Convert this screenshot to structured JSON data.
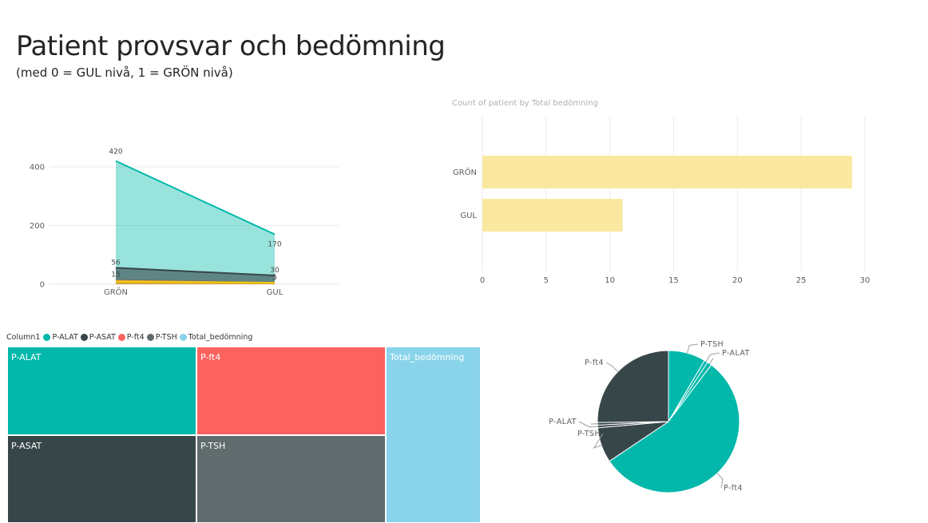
{
  "page": {
    "title": "Patient provsvar och bedömning",
    "subtitle": "(med 0 = GUL nivå, 1 = GRÖN nivå)"
  },
  "colors": {
    "P-ALAT": "#01b8aa",
    "P-ASAT": "#374649",
    "P-ft4": "#fd625e",
    "P-TSH": "#5f6b6d",
    "Total_bedömning": "#8ad4eb",
    "bar": "#fbe8a0",
    "grid": "#eaeaea"
  },
  "chart_data": [
    {
      "type": "area",
      "categories": [
        "GRÖN",
        "GUL"
      ],
      "yticks": [
        "0",
        "200",
        "400"
      ],
      "ylim": [
        0,
        460
      ],
      "series": [
        {
          "key": "P-ALAT",
          "values": [
            420,
            170
          ],
          "labels": [
            "420",
            "170"
          ]
        },
        {
          "key": "P-ASAT",
          "values": [
            56,
            30
          ],
          "labels": [
            "56",
            "30"
          ]
        },
        {
          "key": "P-TSH",
          "values": [
            15,
            5
          ],
          "labels": [
            "15",
            "5"
          ]
        },
        {
          "key": "P-ft4",
          "values": [
            12,
            5
          ],
          "labels": [
            "",
            "5"
          ]
        },
        {
          "key": "Total_bedömning",
          "values": [
            9,
            5
          ],
          "labels": [
            "",
            "5"
          ]
        }
      ]
    },
    {
      "type": "bar",
      "orientation": "horizontal",
      "title": "Count of patient by Total bedömning",
      "categories": [
        "GRÖN",
        "GUL"
      ],
      "values": [
        29,
        11
      ],
      "xticks": [
        "0",
        "5",
        "10",
        "15",
        "20",
        "25",
        "30"
      ],
      "xlim": [
        0,
        30
      ]
    },
    {
      "type": "treemap",
      "legend_title": "Column1",
      "legend": [
        "P-ALAT",
        "P-ASAT",
        "P-ft4",
        "P-TSH",
        "Total_bedömning"
      ],
      "tiles": [
        {
          "key": "P-ALAT",
          "label": "P-ALAT"
        },
        {
          "key": "P-ft4",
          "label": "P-ft4"
        },
        {
          "key": "Total_bedömning",
          "label": "Total_bedömning"
        },
        {
          "key": "P-ASAT",
          "label": "P-ASAT"
        },
        {
          "key": "P-TSH",
          "label": "P-TSH"
        }
      ]
    },
    {
      "type": "pie",
      "slices": [
        {
          "label": "P-TSH",
          "value": 8.5,
          "color": "#01b8aa"
        },
        {
          "label": "P-ALAT",
          "value": 0.8,
          "color": "#01b8aa"
        },
        {
          "label": "P-ALAT",
          "value": 1.0,
          "color": "#01b8aa"
        },
        {
          "label": "P-ft4",
          "value": 55.3,
          "color": "#01b8aa"
        },
        {
          "label": "P-TSH",
          "value": 8.0,
          "color": "#374649"
        },
        {
          "label": "P-ALAT",
          "value": 0.6,
          "color": "#374649"
        },
        {
          "label": "P-ALAT",
          "value": 0.6,
          "color": "#374649"
        },
        {
          "label": "P-ft4",
          "value": 25.2,
          "color": "#374649"
        }
      ]
    }
  ]
}
